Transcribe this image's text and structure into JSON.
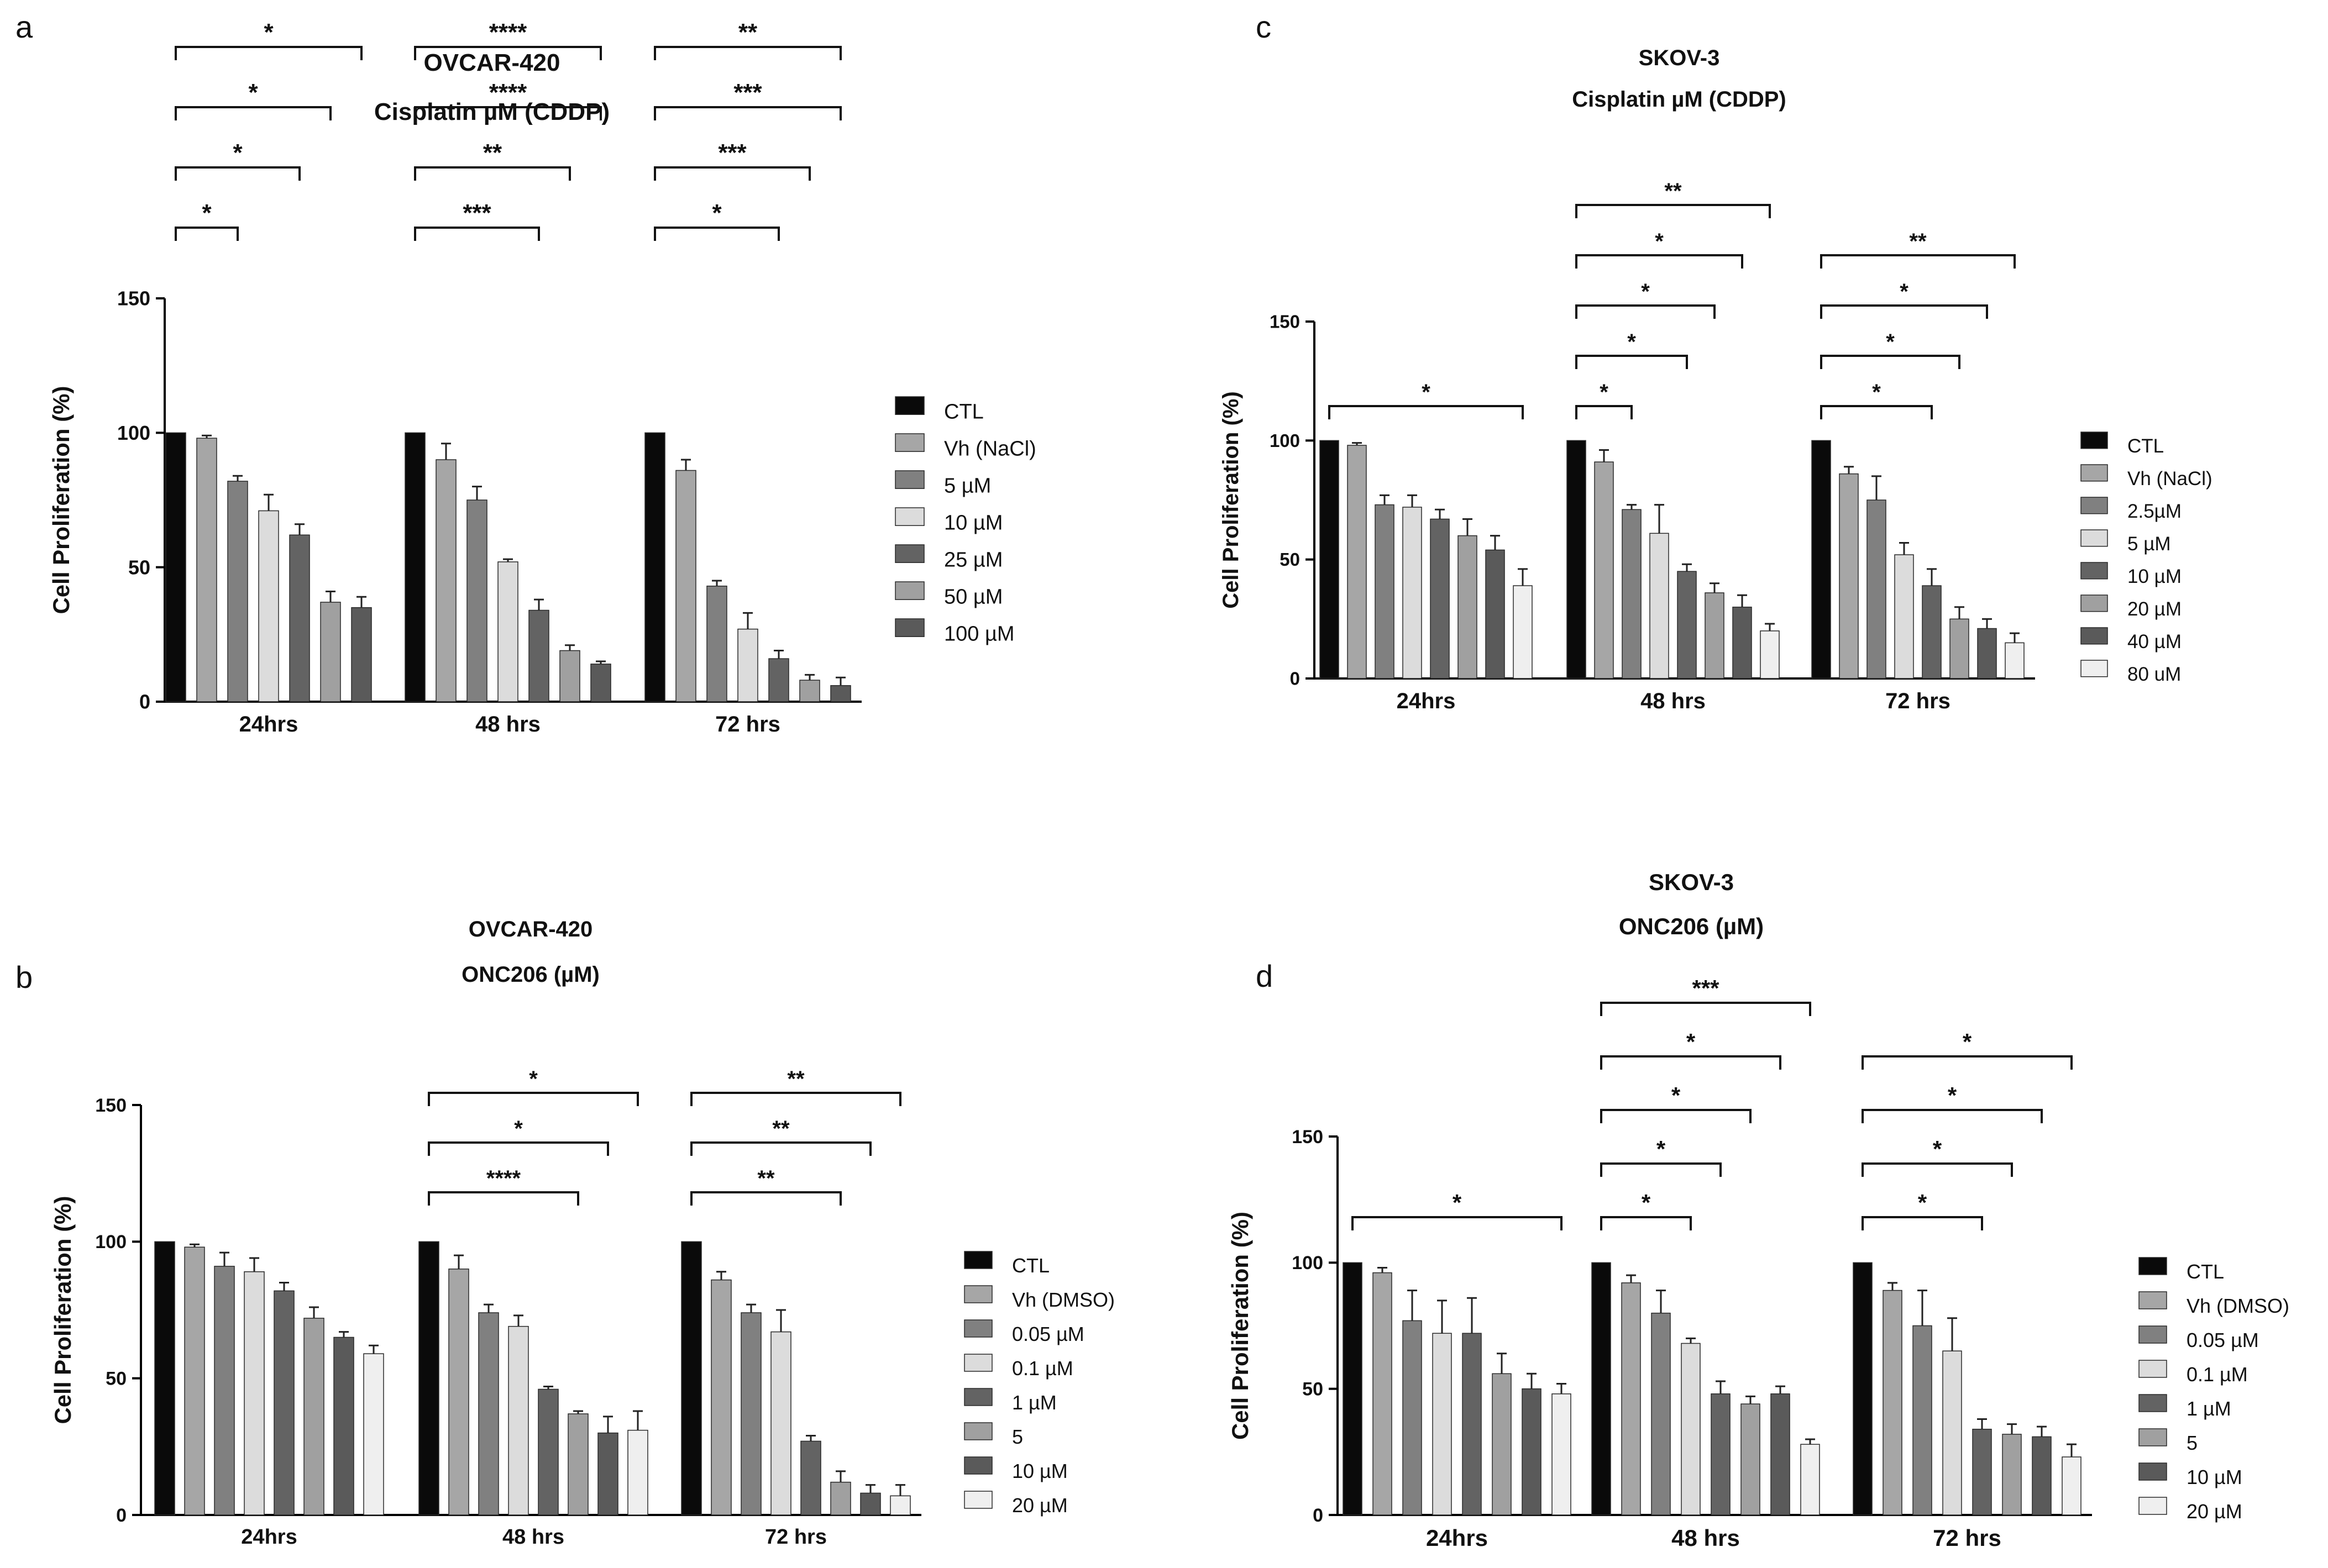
{
  "figure": {
    "background": "#ffffff"
  },
  "chart_data": [
    {
      "panel_label": "a",
      "type": "bar",
      "title": "OVCAR-420",
      "subtitle": "Cisplatin µM (CDDP)",
      "xlabel": "",
      "ylabel": "Cell Proliferation (%)",
      "ylim": [
        0,
        150
      ],
      "yticks": [
        0,
        50,
        100,
        150
      ],
      "categories": [
        "24hrs",
        "48 hrs",
        "72 hrs"
      ],
      "series": [
        {
          "name": "CTL",
          "color": "#0a0a0a",
          "values": [
            100,
            100,
            100
          ],
          "errors": [
            0,
            0,
            0
          ]
        },
        {
          "name": "Vh (NaCl)",
          "color": "#a6a6a6",
          "values": [
            98,
            90,
            86
          ],
          "errors": [
            1,
            6,
            4
          ]
        },
        {
          "name": "5 µM",
          "color": "#808080",
          "values": [
            82,
            75,
            43
          ],
          "errors": [
            2,
            5,
            2
          ]
        },
        {
          "name": "10 µM",
          "color": "#dcdcdc",
          "values": [
            71,
            52,
            27
          ],
          "errors": [
            6,
            1,
            6
          ]
        },
        {
          "name": "25 µM",
          "color": "#636363",
          "values": [
            62,
            34,
            16
          ],
          "errors": [
            4,
            4,
            3
          ]
        },
        {
          "name": "50 µM",
          "color": "#a0a0a0",
          "values": [
            37,
            19,
            8
          ],
          "errors": [
            4,
            2,
            2
          ]
        },
        {
          "name": "100 µM",
          "color": "#5a5a5a",
          "values": [
            35,
            14,
            6
          ],
          "errors": [
            4,
            1,
            3
          ]
        }
      ],
      "significance": [
        {
          "category": "24hrs",
          "from": "CTL",
          "to": "5 µM",
          "label": "*"
        },
        {
          "category": "24hrs",
          "from": "CTL",
          "to": "25 µM",
          "label": "*"
        },
        {
          "category": "24hrs",
          "from": "CTL",
          "to": "50 µM",
          "label": "*"
        },
        {
          "category": "24hrs",
          "from": "CTL",
          "to": "100 µM",
          "label": "*"
        },
        {
          "category": "48 hrs",
          "from": "CTL",
          "to": "25 µM",
          "label": "***"
        },
        {
          "category": "48 hrs",
          "from": "CTL",
          "to": "50 µM",
          "label": "**"
        },
        {
          "category": "48 hrs",
          "from": "CTL",
          "to": "100 µM",
          "label": "****"
        },
        {
          "category": "48 hrs",
          "from": "CTL",
          "to": "100 µM",
          "label": "****"
        },
        {
          "category": "72 hrs",
          "from": "CTL",
          "to": "25 µM",
          "label": "*"
        },
        {
          "category": "72 hrs",
          "from": "CTL",
          "to": "50 µM",
          "label": "***"
        },
        {
          "category": "72 hrs",
          "from": "CTL",
          "to": "100 µM",
          "label": "***"
        },
        {
          "category": "72 hrs",
          "from": "CTL",
          "to": "100 µM",
          "label": "**"
        }
      ]
    },
    {
      "panel_label": "b",
      "type": "bar",
      "title": "OVCAR-420",
      "subtitle": "ONC206 (µM)",
      "xlabel": "",
      "ylabel": "Cell Proliferation (%)",
      "ylim": [
        0,
        150
      ],
      "yticks": [
        0,
        50,
        100,
        150
      ],
      "categories": [
        "24hrs",
        "48 hrs",
        "72 hrs"
      ],
      "series": [
        {
          "name": "CTL",
          "color": "#0a0a0a",
          "values": [
            100,
            100,
            100
          ],
          "errors": [
            0,
            0,
            0
          ]
        },
        {
          "name": "Vh (DMSO)",
          "color": "#a6a6a6",
          "values": [
            98,
            90,
            86
          ],
          "errors": [
            1,
            5,
            3
          ]
        },
        {
          "name": "0.05 µM",
          "color": "#808080",
          "values": [
            91,
            74,
            74
          ],
          "errors": [
            5,
            3,
            3
          ]
        },
        {
          "name": "0.1 µM",
          "color": "#dcdcdc",
          "values": [
            89,
            69,
            67
          ],
          "errors": [
            5,
            4,
            8
          ]
        },
        {
          "name": "1 µM",
          "color": "#636363",
          "values": [
            82,
            46,
            27
          ],
          "errors": [
            3,
            1,
            2
          ]
        },
        {
          "name": "5",
          "color": "#a0a0a0",
          "values": [
            72,
            37,
            12
          ],
          "errors": [
            4,
            1,
            4
          ]
        },
        {
          "name": "10 µM",
          "color": "#5a5a5a",
          "values": [
            65,
            30,
            8
          ],
          "errors": [
            2,
            6,
            3
          ]
        },
        {
          "name": "20 µM",
          "color": "#efefef",
          "values": [
            59,
            31,
            7
          ],
          "errors": [
            3,
            7,
            4
          ]
        }
      ],
      "significance": [
        {
          "category": "48 hrs",
          "from": "CTL",
          "to": "5",
          "label": "****"
        },
        {
          "category": "48 hrs",
          "from": "CTL",
          "to": "10 µM",
          "label": "*"
        },
        {
          "category": "48 hrs",
          "from": "CTL",
          "to": "20 µM",
          "label": "*"
        },
        {
          "category": "72 hrs",
          "from": "CTL",
          "to": "5",
          "label": "**"
        },
        {
          "category": "72 hrs",
          "from": "CTL",
          "to": "10 µM",
          "label": "**"
        },
        {
          "category": "72 hrs",
          "from": "CTL",
          "to": "20 µM",
          "label": "**"
        }
      ]
    },
    {
      "panel_label": "c",
      "type": "bar",
      "title": "SKOV-3",
      "subtitle": "Cisplatin µM (CDDP)",
      "xlabel": "",
      "ylabel": "Cell Proliferation (%)",
      "ylim": [
        0,
        150
      ],
      "yticks": [
        0,
        50,
        100,
        150
      ],
      "categories": [
        "24hrs",
        "48 hrs",
        "72 hrs"
      ],
      "series": [
        {
          "name": "CTL",
          "color": "#0a0a0a",
          "values": [
            100,
            100,
            100
          ],
          "errors": [
            0,
            0,
            0
          ]
        },
        {
          "name": "Vh (NaCl)",
          "color": "#a6a6a6",
          "values": [
            98,
            91,
            86
          ],
          "errors": [
            1,
            5,
            3
          ]
        },
        {
          "name": "2.5µM",
          "color": "#808080",
          "values": [
            73,
            71,
            75
          ],
          "errors": [
            4,
            2,
            10
          ]
        },
        {
          "name": "5 µM",
          "color": "#dcdcdc",
          "values": [
            72,
            61,
            52
          ],
          "errors": [
            5,
            12,
            5
          ]
        },
        {
          "name": "10 µM",
          "color": "#636363",
          "values": [
            67,
            45,
            39
          ],
          "errors": [
            4,
            3,
            7
          ]
        },
        {
          "name": "20 µM",
          "color": "#a0a0a0",
          "values": [
            60,
            36,
            25
          ],
          "errors": [
            7,
            4,
            5
          ]
        },
        {
          "name": "40 µM",
          "color": "#5a5a5a",
          "values": [
            54,
            30,
            21
          ],
          "errors": [
            6,
            5,
            4
          ]
        },
        {
          "name": "80 uM",
          "color": "#efefef",
          "values": [
            39,
            20,
            15
          ],
          "errors": [
            7,
            3,
            4
          ]
        }
      ],
      "significance": [
        {
          "category": "24hrs",
          "from": "CTL",
          "to": "80 uM",
          "label": "*"
        },
        {
          "category": "48 hrs",
          "from": "CTL",
          "to": "2.5µM",
          "label": "*"
        },
        {
          "category": "48 hrs",
          "from": "CTL",
          "to": "10 µM",
          "label": "*"
        },
        {
          "category": "48 hrs",
          "from": "CTL",
          "to": "20 µM",
          "label": "*"
        },
        {
          "category": "48 hrs",
          "from": "CTL",
          "to": "40 µM",
          "label": "*"
        },
        {
          "category": "48 hrs",
          "from": "CTL",
          "to": "80 uM",
          "label": "**"
        },
        {
          "category": "72 hrs",
          "from": "CTL",
          "to": "10 µM",
          "label": "*"
        },
        {
          "category": "72 hrs",
          "from": "CTL",
          "to": "20 µM",
          "label": "*"
        },
        {
          "category": "72 hrs",
          "from": "CTL",
          "to": "40 µM",
          "label": "*"
        },
        {
          "category": "72 hrs",
          "from": "CTL",
          "to": "80 uM",
          "label": "**"
        }
      ]
    },
    {
      "panel_label": "d",
      "type": "bar",
      "title": "SKOV-3",
      "subtitle": "ONC206 (µM)",
      "xlabel": "",
      "ylabel": "Cell Proliferation (%)",
      "ylim": [
        0,
        150
      ],
      "yticks": [
        0,
        50,
        100,
        150
      ],
      "categories": [
        "24hrs",
        "48 hrs",
        "72 hrs"
      ],
      "series": [
        {
          "name": "CTL",
          "color": "#0a0a0a",
          "values": [
            100,
            100,
            100
          ],
          "errors": [
            0,
            0,
            0
          ]
        },
        {
          "name": "Vh (DMSO)",
          "color": "#a6a6a6",
          "values": [
            96,
            92,
            89
          ],
          "errors": [
            2,
            3,
            3
          ]
        },
        {
          "name": "0.05 µM",
          "color": "#808080",
          "values": [
            77,
            80,
            75
          ],
          "errors": [
            12,
            9,
            14
          ]
        },
        {
          "name": "0.1 µM",
          "color": "#dcdcdc",
          "values": [
            72,
            68,
            65
          ],
          "errors": [
            13,
            2,
            13
          ]
        },
        {
          "name": "1 µM",
          "color": "#636363",
          "values": [
            72,
            48,
            34
          ],
          "errors": [
            14,
            5,
            4
          ]
        },
        {
          "name": "5",
          "color": "#a0a0a0",
          "values": [
            56,
            44,
            32
          ],
          "errors": [
            8,
            3,
            4
          ]
        },
        {
          "name": "10 µM",
          "color": "#5a5a5a",
          "values": [
            50,
            48,
            31
          ],
          "errors": [
            6,
            3,
            4
          ]
        },
        {
          "name": "20 µM",
          "color": "#efefef",
          "values": [
            48,
            28,
            23
          ],
          "errors": [
            4,
            2,
            5
          ]
        }
      ],
      "significance": [
        {
          "category": "24hrs",
          "from": "CTL",
          "to": "20 µM",
          "label": "*"
        },
        {
          "category": "48 hrs",
          "from": "CTL",
          "to": "0.1 µM",
          "label": "*"
        },
        {
          "category": "48 hrs",
          "from": "CTL",
          "to": "1 µM",
          "label": "*"
        },
        {
          "category": "48 hrs",
          "from": "CTL",
          "to": "5",
          "label": "*"
        },
        {
          "category": "48 hrs",
          "from": "CTL",
          "to": "10 µM",
          "label": "*"
        },
        {
          "category": "48 hrs",
          "from": "CTL",
          "to": "20 µM",
          "label": "***"
        },
        {
          "category": "72 hrs",
          "from": "CTL",
          "to": "1 µM",
          "label": "*"
        },
        {
          "category": "72 hrs",
          "from": "CTL",
          "to": "5",
          "label": "*"
        },
        {
          "category": "72 hrs",
          "from": "CTL",
          "to": "10 µM",
          "label": "*"
        },
        {
          "category": "72 hrs",
          "from": "CTL",
          "to": "20 µM",
          "label": "*"
        }
      ]
    }
  ]
}
